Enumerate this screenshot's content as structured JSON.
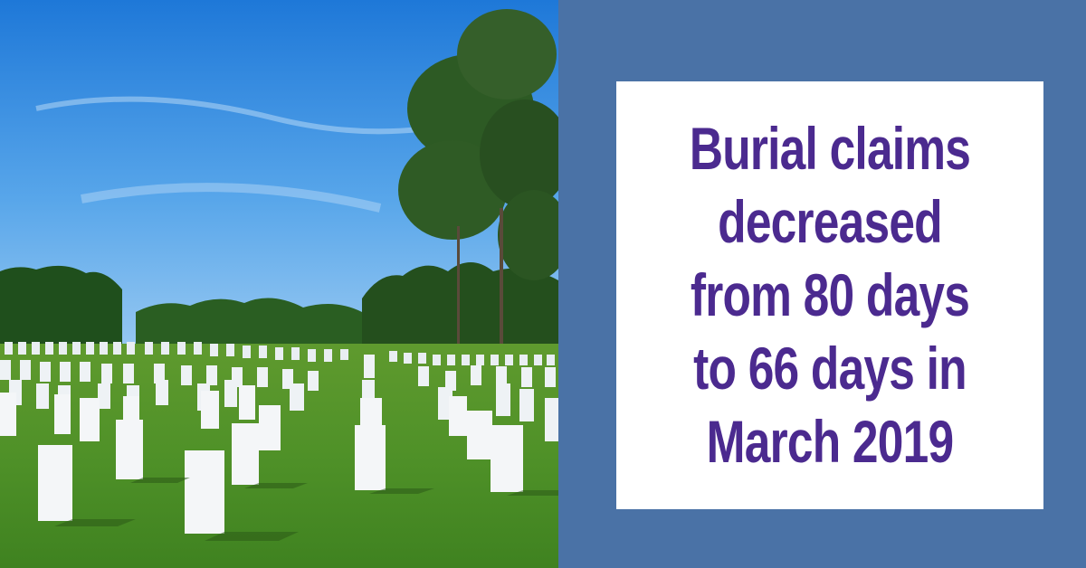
{
  "photo": {
    "subject": "cemetery-headstones-photo"
  },
  "colors": {
    "panel_background": "#4a72a6",
    "card_background": "#ffffff",
    "headline_text": "#4b2a8f"
  },
  "headline": {
    "text": "Burial claims decreased from 80 days to 66 days in March 2019"
  }
}
